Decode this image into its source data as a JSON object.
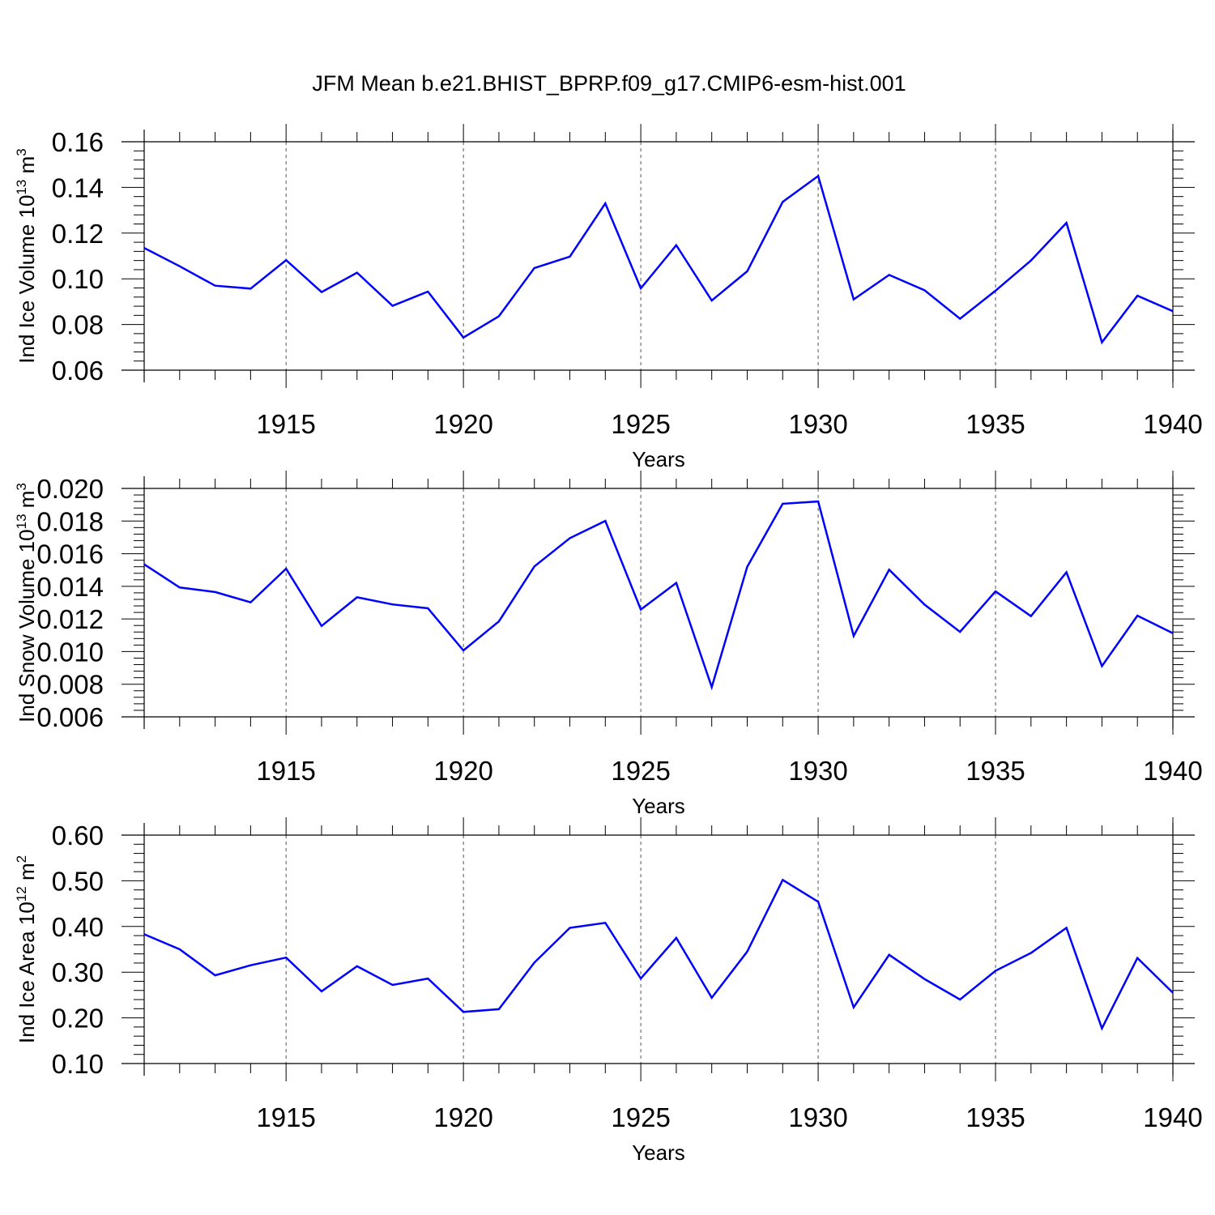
{
  "title": "JFM Mean b.e21.BHIST_BPRP.f09_g17.CMIP6-esm-hist.001",
  "chart_data": [
    {
      "type": "line",
      "ylabel": {
        "prefix": "Ind Ice Volume 10",
        "sup1": "13",
        "mid": " m",
        "sup2": "3"
      },
      "xlabel": "Years",
      "xlim": [
        1911,
        1940
      ],
      "ylim": [
        0.06,
        0.16
      ],
      "yticks": [
        0.06,
        0.08,
        0.1,
        0.12,
        0.14,
        0.16
      ],
      "ytick_labels": [
        "0.06",
        "0.08",
        "0.10",
        "0.12",
        "0.14",
        "0.16"
      ],
      "line_color": "#0000ff",
      "x": [
        1911,
        1912,
        1913,
        1914,
        1915,
        1916,
        1917,
        1918,
        1919,
        1920,
        1921,
        1922,
        1923,
        1924,
        1925,
        1926,
        1927,
        1928,
        1929,
        1930,
        1931,
        1932,
        1933,
        1934,
        1935,
        1936,
        1937,
        1938,
        1939,
        1940
      ],
      "values": [
        0.1135,
        0.1055,
        0.097,
        0.0957,
        0.1082,
        0.0942,
        0.1027,
        0.0882,
        0.0944,
        0.0743,
        0.0836,
        0.1047,
        0.1097,
        0.133,
        0.0958,
        0.1147,
        0.0905,
        0.1033,
        0.1337,
        0.145,
        0.091,
        0.1017,
        0.095,
        0.0825,
        0.0948,
        0.108,
        0.1245,
        0.0722,
        0.0926,
        0.0858
      ]
    },
    {
      "type": "line",
      "ylabel": {
        "prefix": "Ind Snow Volume 10",
        "sup1": "13",
        "mid": " m",
        "sup2": "3"
      },
      "xlabel": "Years",
      "xlim": [
        1911,
        1940
      ],
      "ylim": [
        0.006,
        0.02
      ],
      "yticks": [
        0.006,
        0.008,
        0.01,
        0.012,
        0.014,
        0.016,
        0.018,
        0.02
      ],
      "ytick_labels": [
        "0.006",
        "0.008",
        "0.010",
        "0.012",
        "0.014",
        "0.016",
        "0.018",
        "0.020"
      ],
      "line_color": "#0000ff",
      "x": [
        1911,
        1912,
        1913,
        1914,
        1915,
        1916,
        1917,
        1918,
        1919,
        1920,
        1921,
        1922,
        1923,
        1924,
        1925,
        1926,
        1927,
        1928,
        1929,
        1930,
        1931,
        1932,
        1933,
        1934,
        1935,
        1936,
        1937,
        1938,
        1939,
        1940
      ],
      "values": [
        0.01535,
        0.01393,
        0.01365,
        0.01302,
        0.01508,
        0.01157,
        0.01333,
        0.01289,
        0.01265,
        0.01007,
        0.01185,
        0.01522,
        0.01695,
        0.01801,
        0.01258,
        0.01421,
        0.00782,
        0.0152,
        0.01906,
        0.0192,
        0.01096,
        0.01502,
        0.01288,
        0.01121,
        0.01369,
        0.01217,
        0.01486,
        0.00911,
        0.0122,
        0.01113
      ]
    },
    {
      "type": "line",
      "ylabel": {
        "prefix": "Ind Ice Area 10",
        "sup1": "12",
        "mid": " m",
        "sup2": "2"
      },
      "xlabel": "Years",
      "xlim": [
        1911,
        1940
      ],
      "ylim": [
        0.1,
        0.6
      ],
      "yticks": [
        0.1,
        0.2,
        0.3,
        0.4,
        0.5,
        0.6
      ],
      "ytick_labels": [
        "0.10",
        "0.20",
        "0.30",
        "0.40",
        "0.50",
        "0.60"
      ],
      "line_color": "#0000ff",
      "x": [
        1911,
        1912,
        1913,
        1914,
        1915,
        1916,
        1917,
        1918,
        1919,
        1920,
        1921,
        1922,
        1923,
        1924,
        1925,
        1926,
        1927,
        1928,
        1929,
        1930,
        1931,
        1932,
        1933,
        1934,
        1935,
        1936,
        1937,
        1938,
        1939,
        1940
      ],
      "values": [
        0.383,
        0.35,
        0.293,
        0.315,
        0.332,
        0.258,
        0.313,
        0.272,
        0.286,
        0.213,
        0.219,
        0.321,
        0.397,
        0.408,
        0.286,
        0.375,
        0.244,
        0.345,
        0.502,
        0.454,
        0.223,
        0.338,
        0.285,
        0.24,
        0.303,
        0.342,
        0.397,
        0.177,
        0.331,
        0.255
      ]
    }
  ],
  "xtick_labels": [
    "1915",
    "1920",
    "1925",
    "1930",
    "1935",
    "1940"
  ],
  "xtick_values": [
    1915,
    1920,
    1925,
    1930,
    1935,
    1940
  ]
}
